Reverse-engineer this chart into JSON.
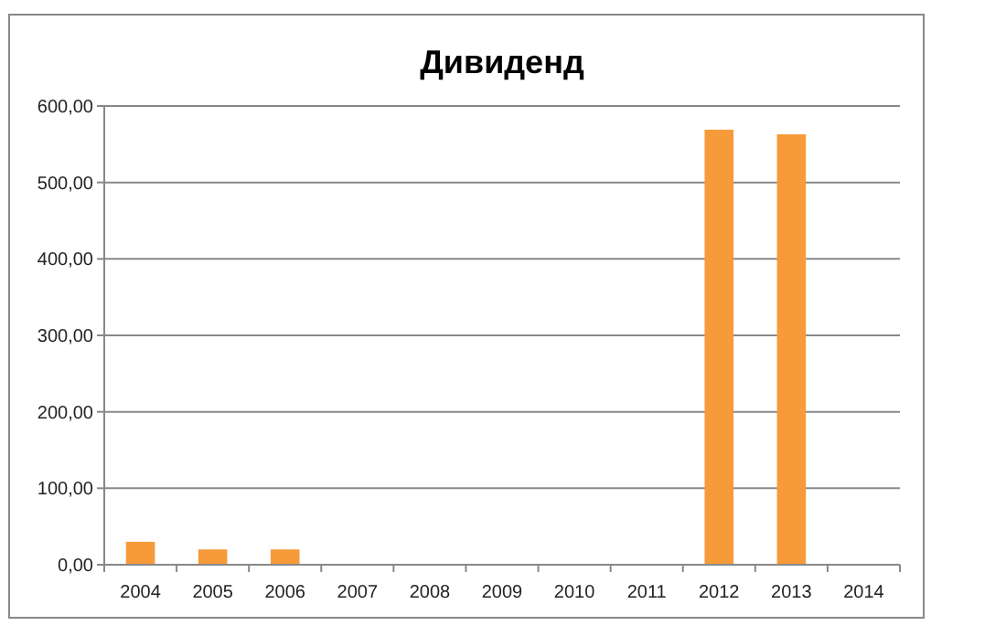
{
  "chart_data": {
    "type": "bar",
    "title": "Дивиденд",
    "categories": [
      "2004",
      "2005",
      "2006",
      "2007",
      "2008",
      "2009",
      "2010",
      "2011",
      "2012",
      "2013",
      "2014"
    ],
    "values": [
      30,
      20,
      20,
      0,
      0,
      0,
      0,
      0,
      569,
      563,
      0
    ],
    "color": "#f79a3a",
    "ylim": [
      0,
      600
    ],
    "yticks": [
      {
        "value": 0,
        "label": "0,00"
      },
      {
        "value": 100,
        "label": "100,00"
      },
      {
        "value": 200,
        "label": "200,00"
      },
      {
        "value": 300,
        "label": "300,00"
      },
      {
        "value": 400,
        "label": "400,00"
      },
      {
        "value": 500,
        "label": "500,00"
      },
      {
        "value": 600,
        "label": "600,00"
      }
    ],
    "grid": "y"
  }
}
